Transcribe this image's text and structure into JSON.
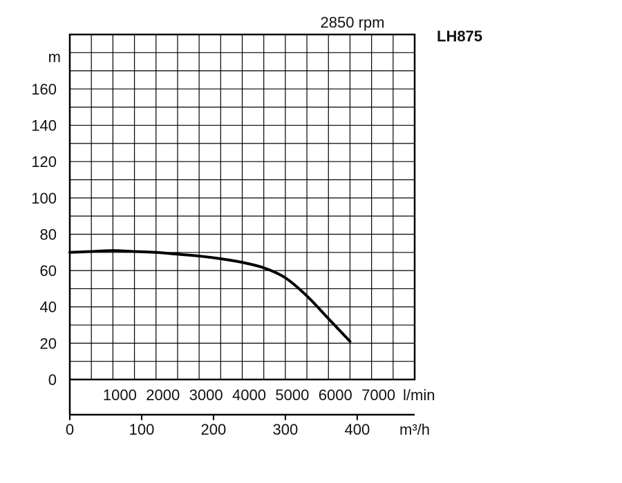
{
  "chart_data": {
    "type": "line",
    "title": "LH875",
    "subtitle": "2850 rpm",
    "ylabel": "m",
    "xlabel": "l/min",
    "x2label": "m³/h",
    "ylim": [
      0,
      190
    ],
    "xlim": [
      0,
      8000
    ],
    "grid": true,
    "y_ticks": [
      0,
      20,
      40,
      60,
      80,
      100,
      120,
      140,
      160
    ],
    "x_ticks_lmin": [
      1000,
      2000,
      3000,
      4000,
      5000,
      6000,
      7000
    ],
    "x_ticks_m3h": [
      0,
      100,
      200,
      300,
      400
    ],
    "series": [
      {
        "color": "#000000",
        "points": [
          [
            0,
            70
          ],
          [
            500,
            70.5
          ],
          [
            1000,
            71
          ],
          [
            1500,
            70.5
          ],
          [
            2000,
            70
          ],
          [
            2500,
            69
          ],
          [
            3000,
            68
          ],
          [
            3500,
            66.5
          ],
          [
            4000,
            64.5
          ],
          [
            4500,
            61.5
          ],
          [
            5000,
            56
          ],
          [
            5500,
            46
          ],
          [
            6000,
            33.5
          ],
          [
            6500,
            21
          ]
        ]
      }
    ]
  }
}
